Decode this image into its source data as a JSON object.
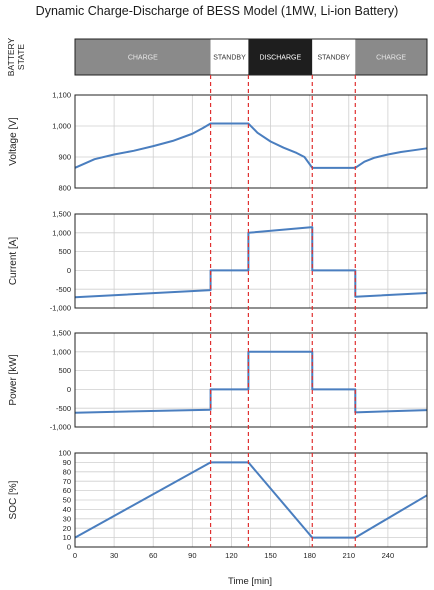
{
  "chart_data": {
    "type": "line",
    "title": "Dynamic Charge-Discharge of BESS Model (1MW, Li-ion Battery)",
    "xlabel": "Time [min]",
    "xlim": [
      0,
      270
    ],
    "xticks": [
      0,
      30,
      60,
      90,
      120,
      150,
      180,
      210,
      240
    ],
    "colors": {
      "line": "#4a7ebf",
      "marker": "#e03030",
      "grid": "#cfcfcf",
      "frame": "#222222"
    },
    "state_bar": {
      "label": "BATTERY STATE",
      "segments": [
        {
          "label": "CHARGE",
          "start": 0,
          "end": 104,
          "fill": "#8a8a8a",
          "text_color": "#e6e6e6"
        },
        {
          "label": "STANDBY",
          "start": 104,
          "end": 133,
          "fill": "#ffffff",
          "text_color": "#333333"
        },
        {
          "label": "DISCHARGE",
          "start": 133,
          "end": 182,
          "fill": "#1e1e1e",
          "text_color": "#ffffff"
        },
        {
          "label": "STANDBY",
          "start": 182,
          "end": 215,
          "fill": "#ffffff",
          "text_color": "#333333"
        },
        {
          "label": "CHARGE",
          "start": 215,
          "end": 270,
          "fill": "#8a8a8a",
          "text_color": "#e6e6e6"
        }
      ]
    },
    "transitions": [
      104,
      133,
      182,
      215
    ],
    "panels": [
      {
        "ylabel": "Voltage [V]",
        "ylim": [
          800,
          1100
        ],
        "yticks": [
          800,
          900,
          1000,
          1100
        ],
        "yticklabels": [
          "800",
          "900",
          "1,000",
          "1,100"
        ],
        "x": [
          0,
          15,
          30,
          45,
          60,
          75,
          90,
          98,
          104,
          133,
          140,
          150,
          160,
          170,
          176,
          182,
          215,
          222,
          230,
          240,
          250,
          260,
          270
        ],
        "y": [
          865,
          893,
          908,
          920,
          935,
          952,
          975,
          993,
          1008,
          1008,
          978,
          950,
          930,
          913,
          900,
          865,
          865,
          885,
          898,
          908,
          916,
          922,
          928
        ]
      },
      {
        "ylabel": "Current [A]",
        "ylim": [
          -1000,
          1500
        ],
        "yticks": [
          -1000,
          -500,
          0,
          500,
          1000,
          1500
        ],
        "yticklabels": [
          "-1,000",
          "-500",
          "0",
          "500",
          "1,000",
          "1,500"
        ],
        "x": [
          0,
          104,
          104,
          133,
          133,
          182,
          182,
          215,
          215,
          270
        ],
        "y": [
          -715,
          -525,
          0,
          0,
          1000,
          1150,
          0,
          0,
          -700,
          -600
        ]
      },
      {
        "ylabel": "Power [kW]",
        "ylim": [
          -1000,
          1500
        ],
        "yticks": [
          -1000,
          -500,
          0,
          500,
          1000,
          1500
        ],
        "yticklabels": [
          "-1,000",
          "-500",
          "0",
          "500",
          "1,000",
          "1,500"
        ],
        "x": [
          0,
          104,
          104,
          133,
          133,
          182,
          182,
          215,
          215,
          270
        ],
        "y": [
          -620,
          -540,
          0,
          0,
          1000,
          1000,
          0,
          0,
          -610,
          -550
        ]
      },
      {
        "ylabel": "SOC [%]",
        "ylim": [
          0,
          100
        ],
        "yticks": [
          0,
          10,
          20,
          30,
          40,
          50,
          60,
          70,
          80,
          90,
          100
        ],
        "yticklabels": [
          "0",
          "10",
          "20",
          "30",
          "40",
          "50",
          "60",
          "70",
          "80",
          "90",
          "100"
        ],
        "x": [
          0,
          104,
          133,
          182,
          215,
          270
        ],
        "y": [
          10,
          90,
          90,
          10,
          10,
          55
        ]
      }
    ]
  }
}
